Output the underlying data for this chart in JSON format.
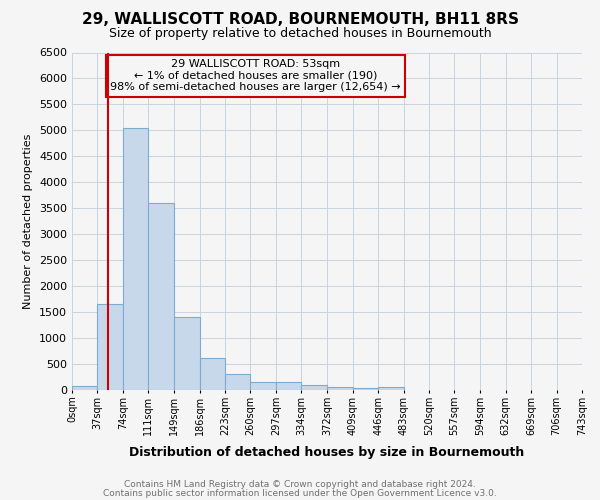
{
  "title": "29, WALLISCOTT ROAD, BOURNEMOUTH, BH11 8RS",
  "subtitle": "Size of property relative to detached houses in Bournemouth",
  "xlabel": "Distribution of detached houses by size in Bournemouth",
  "ylabel": "Number of detached properties",
  "footnote1": "Contains HM Land Registry data © Crown copyright and database right 2024.",
  "footnote2": "Contains public sector information licensed under the Open Government Licence v3.0.",
  "annotation_line1": "29 WALLISCOTT ROAD: 53sqm",
  "annotation_line2": "← 1% of detached houses are smaller (190)",
  "annotation_line3": "98% of semi-detached houses are larger (12,654) →",
  "property_size": 53,
  "bar_left_edges": [
    0,
    37,
    74,
    111,
    149,
    186,
    223,
    260,
    297,
    334,
    372,
    409,
    446
  ],
  "bar_heights": [
    75,
    1650,
    5050,
    3600,
    1400,
    610,
    300,
    160,
    150,
    100,
    50,
    30,
    60
  ],
  "bin_width": 37,
  "bar_color": "#c8d8eb",
  "bar_edge_color": "#7bacd4",
  "red_line_color": "#cc0000",
  "annotation_box_color": "#cc0000",
  "grid_color": "#c8d4e0",
  "ylim": [
    0,
    6500
  ],
  "xlim": [
    0,
    743
  ],
  "tick_positions": [
    0,
    37,
    74,
    111,
    149,
    186,
    223,
    260,
    297,
    334,
    372,
    409,
    446,
    483,
    520,
    557,
    594,
    632,
    669,
    706,
    743
  ],
  "tick_labels": [
    "0sqm",
    "37sqm",
    "74sqm",
    "111sqm",
    "149sqm",
    "186sqm",
    "223sqm",
    "260sqm",
    "297sqm",
    "334sqm",
    "372sqm",
    "409sqm",
    "446sqm",
    "483sqm",
    "520sqm",
    "557sqm",
    "594sqm",
    "632sqm",
    "669sqm",
    "706sqm",
    "743sqm"
  ],
  "background_color": "#f5f5f5",
  "title_fontsize": 11,
  "subtitle_fontsize": 9
}
